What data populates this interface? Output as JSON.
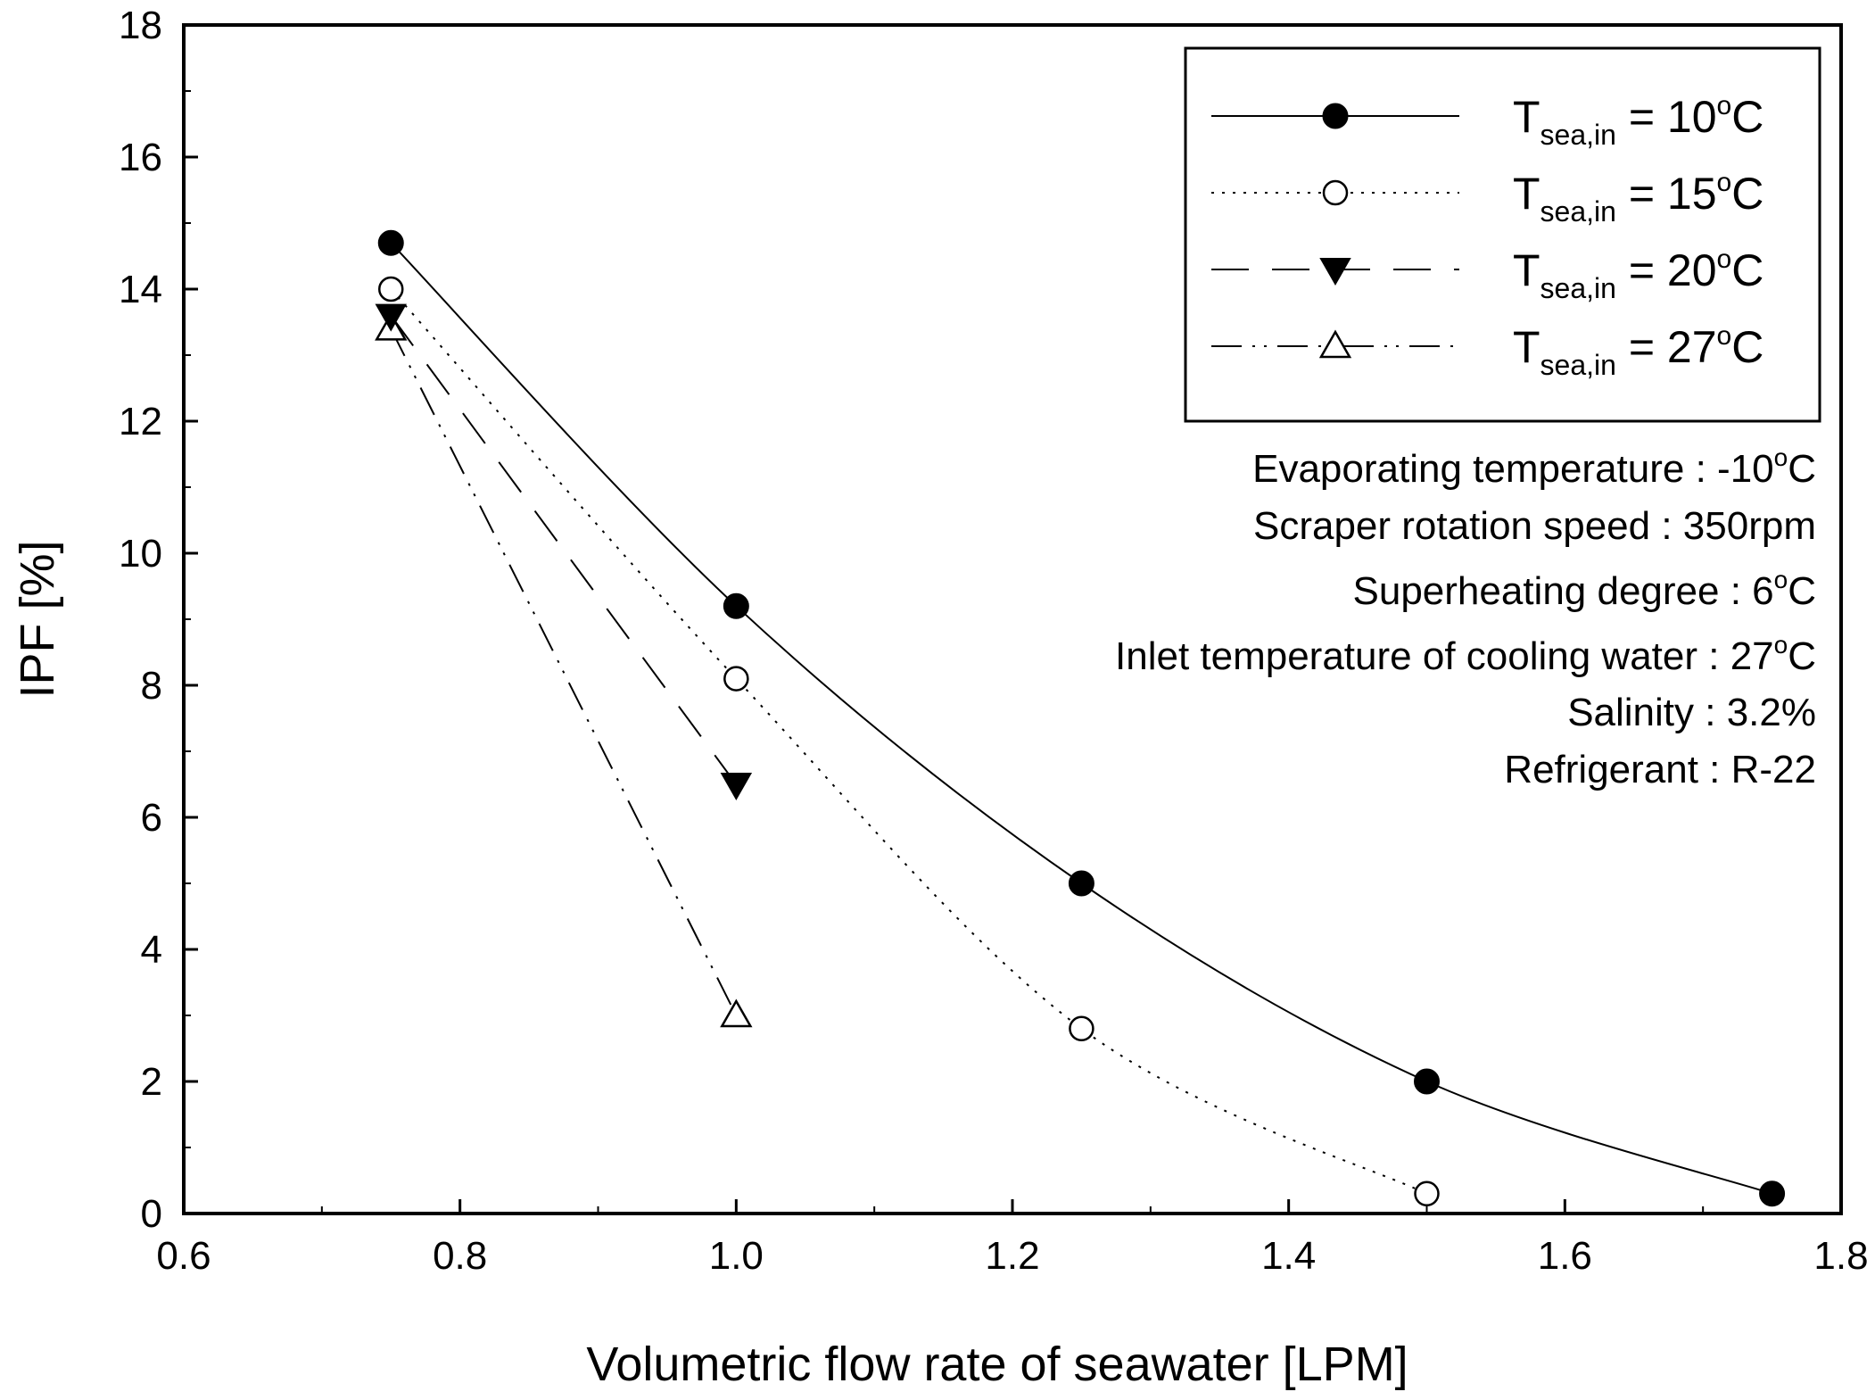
{
  "chart_data": {
    "type": "line",
    "title": "",
    "xlabel": "Volumetric flow rate of seawater [LPM]",
    "ylabel": "IPF [%]",
    "xlim": [
      0.6,
      1.8
    ],
    "ylim": [
      0,
      18
    ],
    "xticks": [
      "0.6",
      "0.8",
      "1.0",
      "1.2",
      "1.4",
      "1.6",
      "1.8"
    ],
    "yticks": [
      "0",
      "2",
      "4",
      "6",
      "8",
      "10",
      "12",
      "14",
      "16",
      "18"
    ],
    "grid": false,
    "legend_position": "top-right",
    "series": [
      {
        "name": "T sea,in = 10°C",
        "legend_main": "T",
        "legend_sub": "sea,in",
        "legend_val": " = 10",
        "legend_unit": "C",
        "marker": "filled-circle",
        "dash": "solid",
        "x": [
          0.75,
          1.0,
          1.25,
          1.5,
          1.75
        ],
        "y": [
          14.7,
          9.2,
          5.0,
          2.0,
          0.3
        ]
      },
      {
        "name": "T sea,in = 15°C",
        "legend_main": "T",
        "legend_sub": "sea,in",
        "legend_val": " = 15",
        "legend_unit": "C",
        "marker": "open-circle",
        "dash": "dotted",
        "x": [
          0.75,
          1.0,
          1.25,
          1.5
        ],
        "y": [
          14.0,
          8.1,
          2.8,
          0.3
        ]
      },
      {
        "name": "T sea,in = 20°C",
        "legend_main": "T",
        "legend_sub": "sea,in",
        "legend_val": " = 20",
        "legend_unit": "C",
        "marker": "filled-triangle-down",
        "dash": "dashed",
        "x": [
          0.75,
          1.0
        ],
        "y": [
          13.6,
          6.5
        ]
      },
      {
        "name": "T sea,in = 27°C",
        "legend_main": "T",
        "legend_sub": "sea,in",
        "legend_val": " = 27",
        "legend_unit": "C",
        "marker": "open-triangle-up",
        "dash": "dash-dot-dot",
        "x": [
          0.75,
          1.0
        ],
        "y": [
          13.4,
          3.0
        ]
      }
    ],
    "annotations": [
      {
        "text": "Evaporating temperature : -10",
        "sup": "o",
        "suffix": "C"
      },
      {
        "text": "Scraper rotation speed : 350rpm",
        "sup": "",
        "suffix": ""
      },
      {
        "text": "Superheating degree : 6",
        "sup": "o",
        "suffix": "C"
      },
      {
        "text": "Inlet temperature of cooling water : 27",
        "sup": "o",
        "suffix": "C"
      },
      {
        "text": "Salinity : 3.2%",
        "sup": "",
        "suffix": ""
      },
      {
        "text": "Refrigerant : R-22",
        "sup": "",
        "suffix": ""
      }
    ],
    "degree_symbol": "o"
  }
}
